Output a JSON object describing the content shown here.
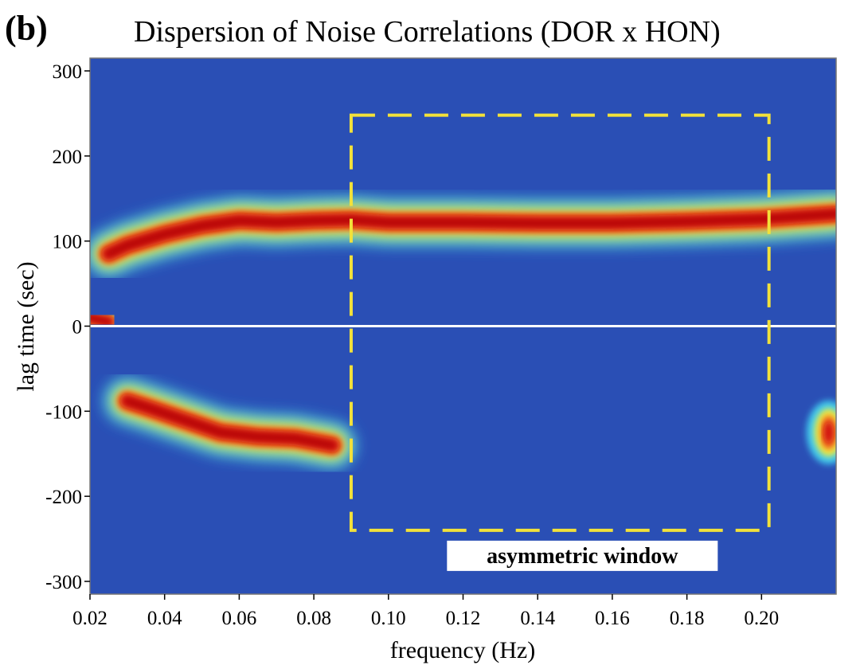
{
  "chart_data": {
    "type": "heatmap",
    "panel_label": "(b)",
    "title": "Dispersion of Noise Correlations (DOR x HON)",
    "xlabel": "frequency (Hz)",
    "ylabel": "lag time (sec)",
    "xlim": [
      0.02,
      0.22
    ],
    "ylim": [
      -315,
      315
    ],
    "x_ticks": [
      {
        "value": 0.02,
        "label": "0.02"
      },
      {
        "value": 0.04,
        "label": "0.04"
      },
      {
        "value": 0.06,
        "label": "0.06"
      },
      {
        "value": 0.08,
        "label": "0.08"
      },
      {
        "value": 0.1,
        "label": "0.10"
      },
      {
        "value": 0.12,
        "label": "0.12"
      },
      {
        "value": 0.14,
        "label": "0.14"
      },
      {
        "value": 0.16,
        "label": "0.16"
      },
      {
        "value": 0.18,
        "label": "0.18"
      },
      {
        "value": 0.2,
        "label": "0.20"
      }
    ],
    "y_ticks": [
      {
        "value": 300,
        "label": "300"
      },
      {
        "value": 200,
        "label": "200"
      },
      {
        "value": 100,
        "label": "100"
      },
      {
        "value": 0,
        "label": "0"
      },
      {
        "value": -100,
        "label": "-100"
      },
      {
        "value": -200,
        "label": "-200"
      },
      {
        "value": -300,
        "label": "-300"
      }
    ],
    "colormap": [
      "#1a3fa8",
      "#2f6fd8",
      "#3fc8ee",
      "#f0f040",
      "#f07020",
      "#d01010",
      "#8a0a0a"
    ],
    "background_color": "#2a4fb5",
    "zero_line_color": "#ffffff",
    "features": [
      {
        "name": "positive-lag-ridge",
        "points": [
          [
            0.025,
            85
          ],
          [
            0.03,
            95
          ],
          [
            0.04,
            108
          ],
          [
            0.05,
            118
          ],
          [
            0.06,
            124
          ],
          [
            0.07,
            122
          ],
          [
            0.08,
            124
          ],
          [
            0.09,
            125
          ],
          [
            0.1,
            122
          ],
          [
            0.12,
            122
          ],
          [
            0.14,
            121
          ],
          [
            0.16,
            121
          ],
          [
            0.18,
            123
          ],
          [
            0.2,
            126
          ],
          [
            0.22,
            132
          ]
        ],
        "intensity": 0.95
      },
      {
        "name": "negative-lag-ridge",
        "points": [
          [
            0.03,
            -88
          ],
          [
            0.035,
            -95
          ],
          [
            0.045,
            -110
          ],
          [
            0.055,
            -125
          ],
          [
            0.065,
            -130
          ],
          [
            0.075,
            -132
          ],
          [
            0.085,
            -140
          ]
        ],
        "intensity": 0.95
      },
      {
        "name": "zero-lag-blob",
        "points": [
          [
            0.02,
            10
          ],
          [
            0.025,
            5
          ]
        ],
        "intensity": 0.75
      },
      {
        "name": "right-edge-blob",
        "points": [
          [
            0.218,
            -125
          ]
        ],
        "intensity": 0.7
      }
    ],
    "annotations": [
      {
        "type": "dashed-rectangle",
        "label": "asymmetric window",
        "x_range": [
          0.09,
          0.202
        ],
        "y_range": [
          -240,
          248
        ],
        "color": "#f2e13a"
      }
    ],
    "grid": false,
    "legend": "none"
  }
}
